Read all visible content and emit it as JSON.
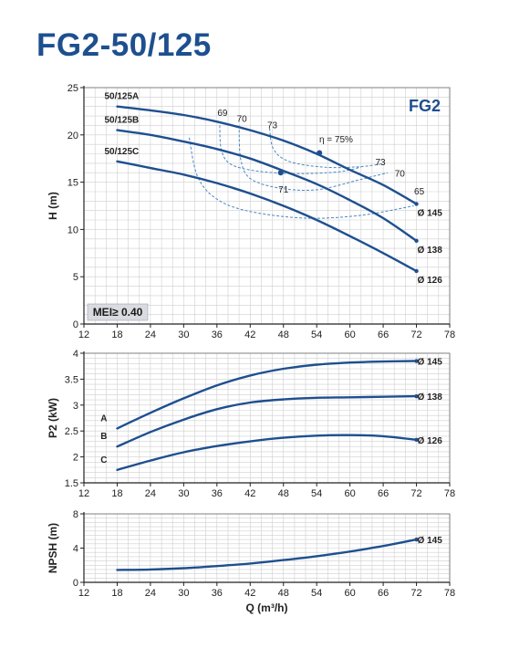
{
  "title": "FG2-50/125",
  "colors": {
    "curve": "#1e4f8f",
    "grid": "#cfcfcf",
    "efficiency": "#4a86c5",
    "mei_box": "#d9dbe0",
    "title": "#1e4f8f"
  },
  "chart_data": [
    {
      "id": "head",
      "type": "line",
      "xlabel": "",
      "ylabel": "H (m)",
      "xlim": [
        12,
        78
      ],
      "ylim": [
        0,
        25
      ],
      "xticks": [
        "12",
        "18",
        "24",
        "30",
        "36",
        "42",
        "48",
        "54",
        "60",
        "66",
        "72",
        "78"
      ],
      "yticks": [
        "0",
        "5",
        "10",
        "15",
        "20",
        "25"
      ],
      "series_label": "FG2",
      "badge": "MEI≥ 0.40",
      "series": [
        {
          "name": "50/125A",
          "end_label": "Ø 145",
          "x": [
            18,
            24,
            30,
            36,
            42,
            48,
            54,
            60,
            66,
            72
          ],
          "y": [
            23,
            22.6,
            22.1,
            21.4,
            20.5,
            19.4,
            18,
            16.3,
            14.7,
            12.7
          ]
        },
        {
          "name": "50/125B",
          "end_label": "Ø 138",
          "x": [
            18,
            24,
            30,
            36,
            42,
            48,
            54,
            60,
            66,
            72
          ],
          "y": [
            20.5,
            20,
            19.3,
            18.5,
            17.5,
            16.2,
            14.8,
            13.1,
            11.2,
            8.8
          ]
        },
        {
          "name": "50/125C",
          "end_label": "Ø 126",
          "x": [
            18,
            24,
            30,
            36,
            42,
            48,
            54,
            60,
            66,
            72
          ],
          "y": [
            17.2,
            16.5,
            15.8,
            14.9,
            13.8,
            12.5,
            11,
            9.3,
            7.5,
            5.6
          ]
        }
      ],
      "efficiency_labels": [
        {
          "text": "69",
          "x": 37,
          "y": 22
        },
        {
          "text": "70",
          "x": 40.5,
          "y": 21.4
        },
        {
          "text": "73",
          "x": 46,
          "y": 20.7
        },
        {
          "text": "η = 75%",
          "x": 57.5,
          "y": 19.2
        },
        {
          "text": "73",
          "x": 65.5,
          "y": 16.8
        },
        {
          "text": "70",
          "x": 69,
          "y": 15.6
        },
        {
          "text": "65",
          "x": 72.5,
          "y": 13.7
        },
        {
          "text": "71",
          "x": 48,
          "y": 13.9
        }
      ],
      "efficiency_points": [
        {
          "x": 54.5,
          "y": 18.1
        },
        {
          "x": 47.5,
          "y": 16
        }
      ],
      "efficiency_contours": [
        {
          "x": [
            36.5,
            36.8,
            38.5,
            43,
            50,
            58,
            62
          ],
          "y": [
            21,
            18.4,
            16.9,
            16.2,
            15.9,
            16.1,
            16.6
          ]
        },
        {
          "x": [
            40,
            40.3,
            42,
            47,
            54,
            62,
            66.8
          ],
          "y": [
            21,
            17.4,
            15.4,
            14.4,
            14.2,
            15.3,
            16
          ]
        },
        {
          "x": [
            45.5,
            46.2,
            49,
            55,
            61,
            65.5
          ],
          "y": [
            20.7,
            18.5,
            17.2,
            16.6,
            16.6,
            16.9
          ]
        },
        {
          "x": [
            31,
            32.5,
            36,
            42,
            52,
            62,
            71.5
          ],
          "y": [
            19.7,
            15.6,
            13.2,
            11.9,
            11.2,
            11.5,
            12.5
          ]
        }
      ]
    },
    {
      "id": "power",
      "type": "line",
      "xlabel": "",
      "ylabel": "P2 (kW)",
      "xlim": [
        12,
        78
      ],
      "ylim": [
        1.5,
        4
      ],
      "xticks": [
        "12",
        "18",
        "24",
        "30",
        "36",
        "42",
        "48",
        "54",
        "60",
        "66",
        "72",
        "78"
      ],
      "yticks": [
        "1.5",
        "2",
        "2.5",
        "3",
        "3.5",
        "4"
      ],
      "series": [
        {
          "name": "A",
          "end_label": "Ø 145",
          "x": [
            18,
            24,
            30,
            36,
            42,
            48,
            54,
            60,
            66,
            72
          ],
          "y": [
            2.55,
            2.85,
            3.13,
            3.38,
            3.57,
            3.7,
            3.78,
            3.82,
            3.84,
            3.85
          ]
        },
        {
          "name": "B",
          "end_label": "Ø 138",
          "x": [
            18,
            24,
            30,
            36,
            42,
            48,
            54,
            60,
            66,
            72
          ],
          "y": [
            2.2,
            2.48,
            2.72,
            2.92,
            3.05,
            3.11,
            3.14,
            3.15,
            3.16,
            3.17
          ]
        },
        {
          "name": "C",
          "end_label": "Ø 126",
          "x": [
            18,
            24,
            30,
            36,
            42,
            48,
            54,
            60,
            66,
            72
          ],
          "y": [
            1.75,
            1.93,
            2.09,
            2.21,
            2.3,
            2.37,
            2.41,
            2.42,
            2.4,
            2.33
          ]
        }
      ]
    },
    {
      "id": "npsh",
      "type": "line",
      "xlabel": "Q (m³/h)",
      "ylabel": "NPSH (m)",
      "xlim": [
        12,
        78
      ],
      "ylim": [
        0,
        8
      ],
      "xticks": [
        "12",
        "18",
        "24",
        "30",
        "36",
        "42",
        "48",
        "54",
        "60",
        "66",
        "72",
        "78"
      ],
      "yticks": [
        "0",
        "4",
        "8"
      ],
      "series": [
        {
          "name": "",
          "end_label": "Ø 145",
          "x": [
            18,
            24,
            30,
            36,
            42,
            48,
            54,
            60,
            66,
            72
          ],
          "y": [
            1.45,
            1.5,
            1.65,
            1.9,
            2.2,
            2.6,
            3.05,
            3.6,
            4.25,
            5
          ]
        }
      ]
    }
  ]
}
